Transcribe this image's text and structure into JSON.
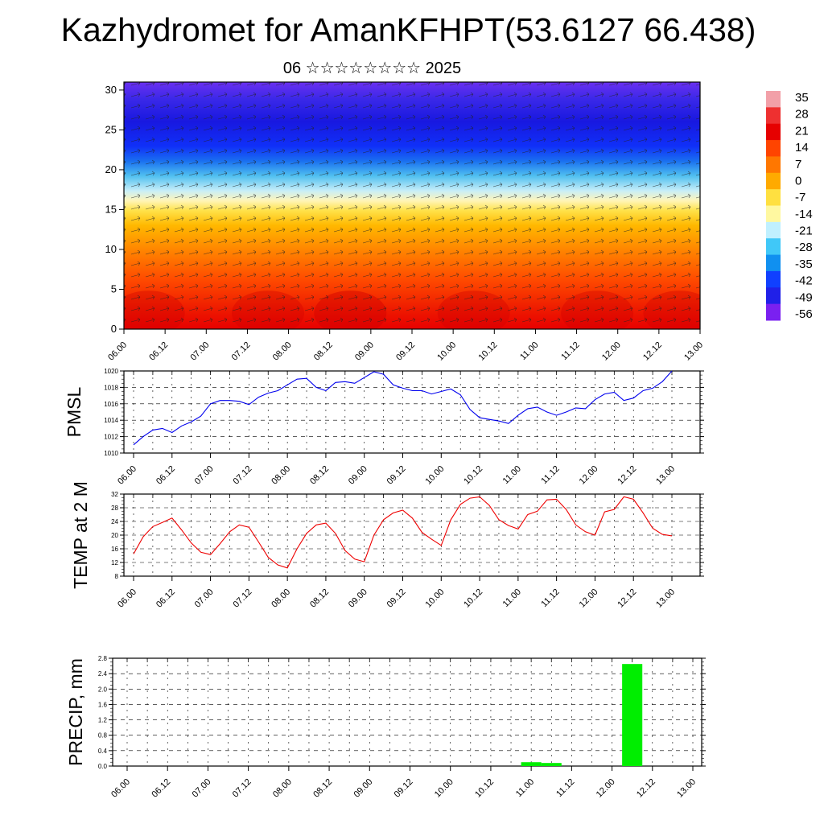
{
  "title": "Kazhydromet for AmanKFHPT(53.6127 66.438)",
  "subtitle": "06 ☆☆☆☆☆☆☆☆ 2025",
  "colors": {
    "pmsl_line": "#0000ee",
    "temp_line": "#ee0000",
    "precip_bar": "#00ee00",
    "colorbar": [
      "#f2a0a8",
      "#ee3030",
      "#e60000",
      "#ff4400",
      "#ff7700",
      "#ffaa00",
      "#ffe040",
      "#fff8a0",
      "#c0f0ff",
      "#40c8f8",
      "#1090f0",
      "#1040ff",
      "#2020e8",
      "#7a20f0"
    ]
  },
  "chart_data": [
    {
      "type": "heatmap",
      "name": "cross-section",
      "x_labels": [
        "06.00",
        "06.12",
        "07.00",
        "07.12",
        "08.00",
        "08.12",
        "09.00",
        "09.12",
        "10.00",
        "10.12",
        "11.00",
        "11.12",
        "12.00",
        "12.12",
        "13.00"
      ],
      "y_ticks": [
        0,
        5,
        10,
        15,
        20,
        25,
        30
      ],
      "ylim": [
        0,
        31
      ],
      "colorbar_labels": [
        "35",
        "28",
        "21",
        "14",
        "7",
        "0",
        "-7",
        "-14",
        "-21",
        "-28",
        "-35",
        "-42",
        "-49",
        "-56"
      ]
    },
    {
      "type": "line",
      "ylabel": "PMSL",
      "ylim": [
        1010,
        1020
      ],
      "y_ticks": [
        1010,
        1012,
        1014,
        1016,
        1018,
        1020
      ],
      "x_labels": [
        "06.00",
        "06.12",
        "07.00",
        "07.12",
        "08.00",
        "08.12",
        "09.00",
        "09.12",
        "10.00",
        "10.12",
        "11.00",
        "11.12",
        "12.00",
        "12.12",
        "13.00"
      ],
      "values": [
        1011.0,
        1012.0,
        1012.8,
        1013.0,
        1012.5,
        1013.3,
        1013.8,
        1014.5,
        1016.0,
        1016.4,
        1016.4,
        1016.3,
        1015.9,
        1016.8,
        1017.3,
        1017.6,
        1018.3,
        1019.0,
        1019.1,
        1018.0,
        1017.6,
        1018.6,
        1018.7,
        1018.5,
        1019.2,
        1019.9,
        1019.6,
        1018.3,
        1017.9,
        1017.6,
        1017.6,
        1017.2,
        1017.5,
        1017.8,
        1017.1,
        1015.3,
        1014.3,
        1014.1,
        1013.9,
        1013.6,
        1014.6,
        1015.4,
        1015.6,
        1015.0,
        1014.6,
        1015.0,
        1015.5,
        1015.4,
        1016.5,
        1017.2,
        1017.4,
        1016.4,
        1016.7,
        1017.6,
        1017.9,
        1018.7,
        1020.0
      ]
    },
    {
      "type": "line",
      "ylabel": "TEMP at 2 M",
      "ylim": [
        8,
        32
      ],
      "y_ticks": [
        8,
        12,
        16,
        20,
        24,
        28,
        32
      ],
      "x_labels": [
        "06.00",
        "06.12",
        "07.00",
        "07.12",
        "08.00",
        "08.12",
        "09.00",
        "09.12",
        "10.00",
        "10.12",
        "11.00",
        "11.12",
        "12.00",
        "12.12",
        "13.00"
      ],
      "values": [
        14.5,
        19.5,
        22.5,
        23.7,
        25.0,
        21.5,
        17.7,
        15.0,
        14.3,
        17.5,
        21.0,
        23.0,
        22.3,
        18.0,
        13.5,
        11.3,
        10.4,
        16.0,
        20.5,
        23.0,
        23.5,
        20.5,
        15.5,
        13.0,
        12.2,
        20.0,
        24.5,
        26.5,
        27.3,
        25.0,
        20.8,
        18.8,
        17.0,
        24.5,
        29.0,
        30.8,
        31.2,
        28.7,
        24.5,
        22.8,
        21.8,
        26.0,
        27.0,
        30.3,
        30.5,
        27.5,
        23.0,
        21.0,
        20.0,
        26.8,
        27.5,
        31.2,
        30.5,
        26.5,
        22.0,
        20.2,
        19.8
      ]
    },
    {
      "type": "bar",
      "ylabel": "PRECIP, mm",
      "ylim": [
        0,
        2.8
      ],
      "y_ticks": [
        "0.0",
        "0.4",
        "0.8",
        "1.2",
        "1.6",
        "2.0",
        "2.4",
        "2.8"
      ],
      "x_labels": [
        "06.00",
        "06.12",
        "07.00",
        "07.12",
        "08.00",
        "08.12",
        "09.00",
        "09.12",
        "10.00",
        "10.12",
        "11.00",
        "11.12",
        "12.00",
        "12.12",
        "13.00"
      ],
      "bars": [
        {
          "x_hours": 120,
          "value": 0.1
        },
        {
          "x_hours": 126,
          "value": 0.08
        },
        {
          "x_hours": 150,
          "value": 2.65
        }
      ]
    }
  ]
}
